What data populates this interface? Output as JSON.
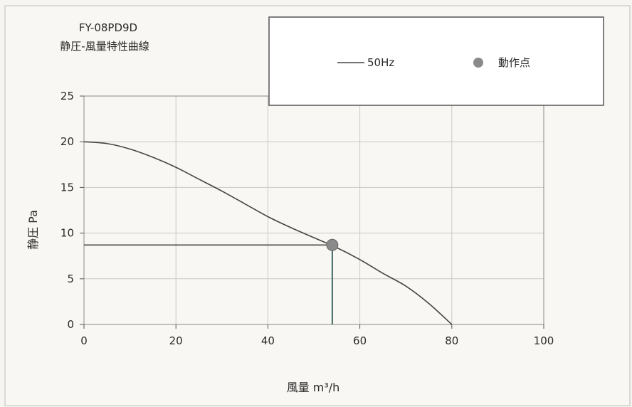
{
  "chart_data": {
    "type": "line",
    "title": "FY-08PD9D",
    "subtitle": "静圧-風量特性曲線",
    "xlabel": "風量 m³/h",
    "ylabel": "静圧 Pa",
    "xlim": [
      0,
      100
    ],
    "ylim": [
      0,
      25
    ],
    "xticks": [
      "0",
      "20",
      "40",
      "60",
      "80",
      "100"
    ],
    "yticks": [
      "0",
      "5",
      "10",
      "15",
      "20",
      "25"
    ],
    "grid": true,
    "legend_position": "top-right",
    "series": [
      {
        "name": "50Hz",
        "color": "#444444",
        "x": [
          0,
          5,
          10,
          15,
          20,
          25,
          30,
          35,
          40,
          45,
          50,
          55,
          60,
          65,
          70,
          75,
          80
        ],
        "y": [
          20.0,
          19.8,
          19.2,
          18.3,
          17.2,
          15.9,
          14.6,
          13.2,
          11.8,
          10.6,
          9.5,
          8.4,
          7.1,
          5.6,
          4.2,
          2.3,
          0.0
        ]
      }
    ],
    "operating_point": {
      "name": "動作点",
      "x": 54,
      "y": 8.7,
      "color": "#8a8a8a"
    }
  }
}
